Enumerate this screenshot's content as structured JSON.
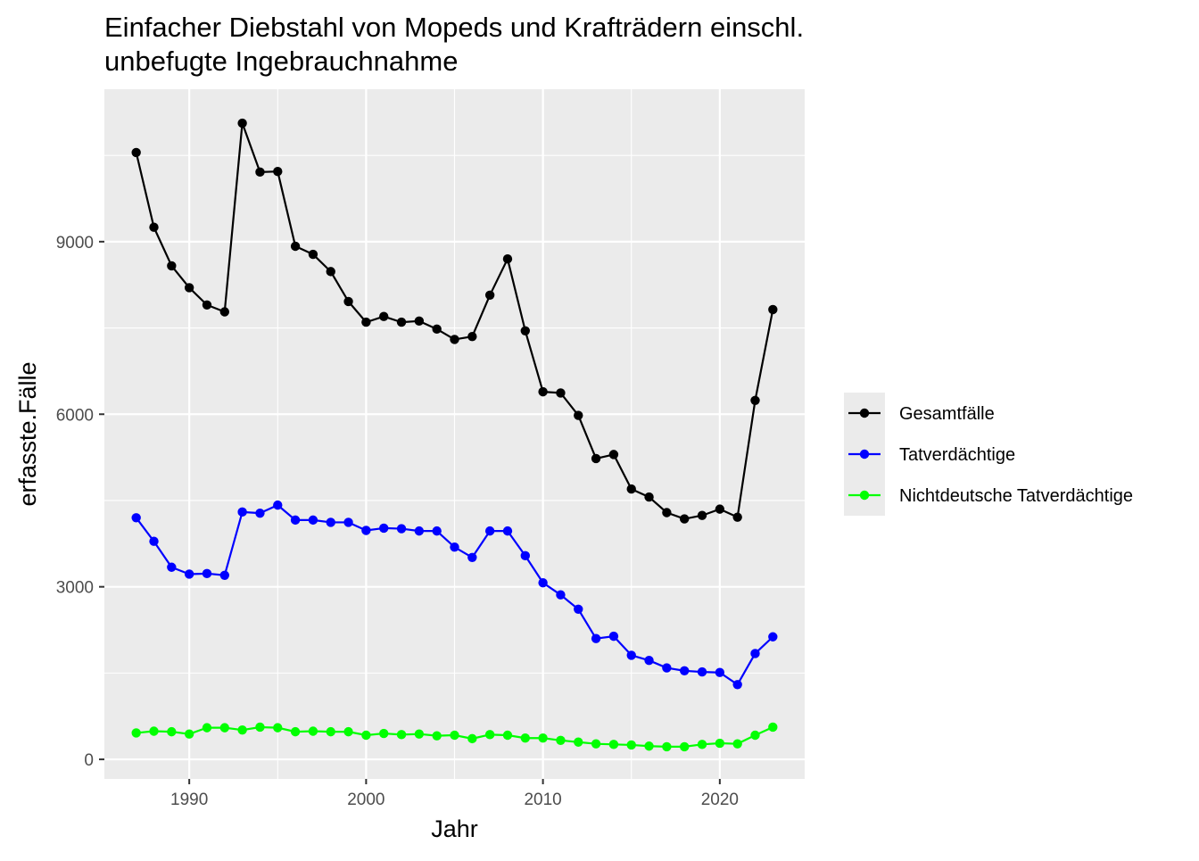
{
  "chart_data": {
    "type": "line",
    "title": "Einfacher Diebstahl von Mopeds und Krafträdern einschl.",
    "subtitle": "unbefugte Ingebrauchnahme",
    "xlabel": "Jahr",
    "ylabel": "erfasste.Fälle",
    "xlim": [
      1985.2,
      2024.8
    ],
    "ylim": [
      -340,
      11650
    ],
    "x_ticks": [
      1990,
      2000,
      2010,
      2020
    ],
    "y_ticks": [
      0,
      3000,
      6000,
      9000
    ],
    "x_tick_labels": [
      "1990",
      "2000",
      "2010",
      "2020"
    ],
    "y_tick_labels": [
      "0",
      "3000",
      "6000",
      "9000"
    ],
    "grid": true,
    "legend_position": "right",
    "x": [
      1987,
      1988,
      1989,
      1990,
      1991,
      1992,
      1993,
      1994,
      1995,
      1996,
      1997,
      1998,
      1999,
      2000,
      2001,
      2002,
      2003,
      2004,
      2005,
      2006,
      2007,
      2008,
      2009,
      2010,
      2011,
      2012,
      2013,
      2014,
      2015,
      2016,
      2017,
      2018,
      2019,
      2020,
      2021,
      2022,
      2023
    ],
    "series": [
      {
        "name": "Gesamtfälle",
        "color": "#000000",
        "values": [
          10550,
          9250,
          8580,
          8200,
          7900,
          7780,
          11060,
          10210,
          10220,
          8920,
          8780,
          8480,
          7960,
          7600,
          7700,
          7600,
          7620,
          7480,
          7300,
          7350,
          8070,
          8700,
          7450,
          6390,
          6370,
          5980,
          5230,
          5300,
          4700,
          4560,
          4290,
          4180,
          4240,
          4350,
          4210,
          6240,
          7820
        ]
      },
      {
        "name": "Tatverdächtige",
        "color": "#0000ff",
        "values": [
          4200,
          3790,
          3340,
          3220,
          3230,
          3200,
          4300,
          4280,
          4420,
          4160,
          4160,
          4120,
          4120,
          3980,
          4020,
          4010,
          3970,
          3970,
          3690,
          3510,
          3970,
          3970,
          3540,
          3070,
          2860,
          2610,
          2100,
          2140,
          1810,
          1720,
          1590,
          1540,
          1520,
          1510,
          1300,
          1840,
          2130
        ]
      },
      {
        "name": "Nichtdeutsche Tatverdächtige",
        "color": "#00ff00",
        "values": [
          460,
          490,
          480,
          440,
          550,
          550,
          510,
          560,
          550,
          480,
          490,
          480,
          480,
          420,
          450,
          430,
          440,
          410,
          420,
          360,
          430,
          420,
          370,
          370,
          330,
          300,
          270,
          260,
          250,
          230,
          220,
          220,
          260,
          280,
          270,
          420,
          560
        ]
      }
    ]
  }
}
